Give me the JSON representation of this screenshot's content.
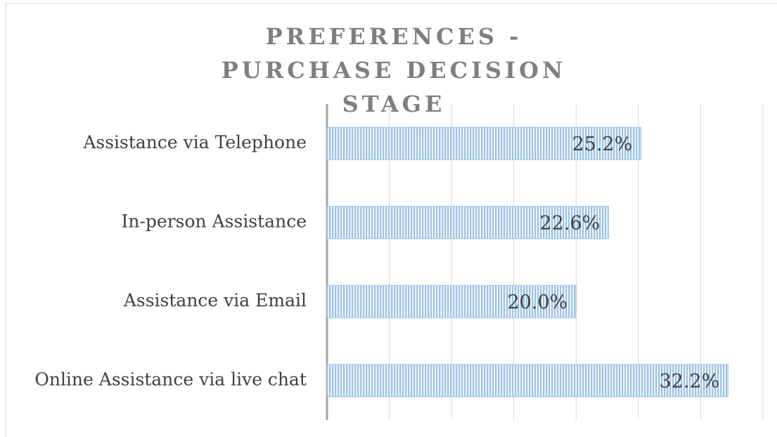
{
  "chart_data": {
    "type": "barh",
    "title": "PREFERENCES - PURCHASE DECISION STAGE",
    "categories": [
      "Assistance via Telephone",
      "In-person Assistance",
      "Assistance via Email",
      "Online Assistance via live chat"
    ],
    "values": [
      25.2,
      22.6,
      20.0,
      32.2
    ],
    "value_labels": [
      "25.2%",
      "22.6%",
      "20.0%",
      "32.2%"
    ],
    "color": "#9dc3e6",
    "xlim": [
      0,
      35
    ],
    "xticks": [
      0,
      5,
      10,
      15,
      20,
      25,
      30,
      35
    ],
    "grid": true
  }
}
